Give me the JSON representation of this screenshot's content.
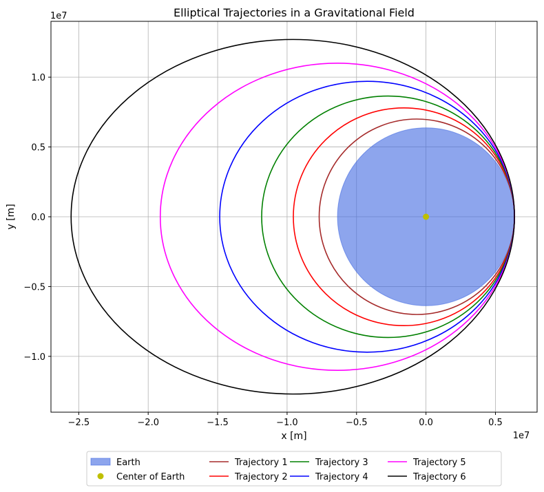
{
  "chart_data": {
    "type": "line",
    "title": "Elliptical Trajectories in a Gravitational Field",
    "xlabel": "x [m]",
    "ylabel": "y [m]",
    "x_offset_label": "1e7",
    "y_offset_label": "1e7",
    "xlim": [
      -27000000.0,
      8000000.0
    ],
    "ylim": [
      -14000000.0,
      14000000.0
    ],
    "x_ticks": [
      {
        "value": -25000000.0,
        "label": "−2.5"
      },
      {
        "value": -20000000.0,
        "label": "−2.0"
      },
      {
        "value": -15000000.0,
        "label": "−1.5"
      },
      {
        "value": -10000000.0,
        "label": "−1.0"
      },
      {
        "value": -5000000.0,
        "label": "−0.5"
      },
      {
        "value": 0,
        "label": "0.0"
      },
      {
        "value": 5000000.0,
        "label": "0.5"
      }
    ],
    "y_ticks": [
      {
        "value": 10000000.0,
        "label": "1.0"
      },
      {
        "value": 5000000.0,
        "label": "0.5"
      },
      {
        "value": 0,
        "label": "0.0"
      },
      {
        "value": -5000000.0,
        "label": "−0.5"
      },
      {
        "value": -10000000.0,
        "label": "−1.0"
      }
    ],
    "grid": true,
    "legend_placement": "below plot, 4 columns",
    "earth": {
      "name": "Earth",
      "center": [
        0,
        0
      ],
      "radius": 6371000.0,
      "color": "#4169e1",
      "alpha": 0.6
    },
    "center_marker": {
      "name": "Center of Earth",
      "x": 0,
      "y": 0,
      "color": "#bfbf00"
    },
    "series": [
      {
        "name": "Trajectory 1",
        "color": "#a52a2a",
        "center_x": -660000.0,
        "semi_major": 7030000.0,
        "semi_minor": 7000000.0
      },
      {
        "name": "Trajectory 2",
        "color": "#ff0000",
        "center_x": -1590000.0,
        "semi_major": 7960000.0,
        "semi_minor": 7800000.0
      },
      {
        "name": "Trajectory 3",
        "color": "#008000",
        "center_x": -2730000.0,
        "semi_major": 9100000.0,
        "semi_minor": 8650000.0
      },
      {
        "name": "Trajectory 4",
        "color": "#0000ff",
        "center_x": -4240000.0,
        "semi_major": 10610000.0,
        "semi_minor": 9700000.0
      },
      {
        "name": "Trajectory 5",
        "color": "#ff00ff",
        "center_x": -6380000.0,
        "semi_major": 12750000.0,
        "semi_minor": 11000000.0
      },
      {
        "name": "Trajectory 6",
        "color": "#000000",
        "center_x": -9590000.0,
        "semi_major": 15960000.0,
        "semi_minor": 12700000.0
      }
    ]
  }
}
